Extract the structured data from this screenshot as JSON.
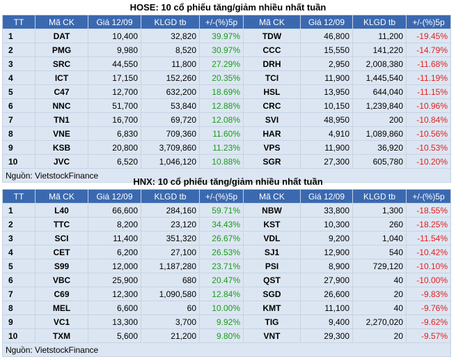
{
  "hose": {
    "title": "HOSE: 10 cổ phiếu tăng/giảm nhiều nhất tuần",
    "headers": [
      "TT",
      "Mã CK",
      "Giá 12/09",
      "KLGD tb",
      "+/-(%)5p",
      "Mã CK",
      "Giá 12/09",
      "KLGD tb",
      "+/-(%)5p"
    ],
    "rows": [
      {
        "tt": "1",
        "up_code": "DAT",
        "up_price": "10,400",
        "up_vol": "32,820",
        "up_pct": "39.97%",
        "dn_code": "TDW",
        "dn_price": "46,800",
        "dn_vol": "11,200",
        "dn_pct": "-19.45%"
      },
      {
        "tt": "2",
        "up_code": "PMG",
        "up_price": "9,980",
        "up_vol": "8,520",
        "up_pct": "30.97%",
        "dn_code": "CCC",
        "dn_price": "15,550",
        "dn_vol": "141,220",
        "dn_pct": "-14.79%"
      },
      {
        "tt": "3",
        "up_code": "SRC",
        "up_price": "44,550",
        "up_vol": "11,800",
        "up_pct": "27.29%",
        "dn_code": "DRH",
        "dn_price": "2,950",
        "dn_vol": "2,008,380",
        "dn_pct": "-11.68%"
      },
      {
        "tt": "4",
        "up_code": "ICT",
        "up_price": "17,150",
        "up_vol": "152,260",
        "up_pct": "20.35%",
        "dn_code": "TCI",
        "dn_price": "11,900",
        "dn_vol": "1,445,540",
        "dn_pct": "-11.19%"
      },
      {
        "tt": "5",
        "up_code": "C47",
        "up_price": "12,700",
        "up_vol": "632,200",
        "up_pct": "18.69%",
        "dn_code": "HSL",
        "dn_price": "13,950",
        "dn_vol": "644,040",
        "dn_pct": "-11.15%"
      },
      {
        "tt": "6",
        "up_code": "NNC",
        "up_price": "51,700",
        "up_vol": "53,840",
        "up_pct": "12.88%",
        "dn_code": "CRC",
        "dn_price": "10,150",
        "dn_vol": "1,239,840",
        "dn_pct": "-10.96%"
      },
      {
        "tt": "7",
        "up_code": "TN1",
        "up_price": "16,700",
        "up_vol": "69,720",
        "up_pct": "12.08%",
        "dn_code": "SVI",
        "dn_price": "48,950",
        "dn_vol": "200",
        "dn_pct": "-10.84%"
      },
      {
        "tt": "8",
        "up_code": "VNE",
        "up_price": "6,830",
        "up_vol": "709,360",
        "up_pct": "11.60%",
        "dn_code": "HAR",
        "dn_price": "4,910",
        "dn_vol": "1,089,860",
        "dn_pct": "-10.56%"
      },
      {
        "tt": "9",
        "up_code": "KSB",
        "up_price": "20,800",
        "up_vol": "3,709,860",
        "up_pct": "11.23%",
        "dn_code": "VPS",
        "dn_price": "11,900",
        "dn_vol": "36,920",
        "dn_pct": "-10.53%"
      },
      {
        "tt": "10",
        "up_code": "JVC",
        "up_price": "6,520",
        "up_vol": "1,046,120",
        "up_pct": "10.88%",
        "dn_code": "SGR",
        "dn_price": "27,300",
        "dn_vol": "605,780",
        "dn_pct": "-10.20%"
      }
    ],
    "source": "Nguồn: VietstockFinance"
  },
  "hnx": {
    "title": "HNX: 10 cổ phiếu tăng/giảm nhiều nhất tuần",
    "headers": [
      "TT",
      "Mã CK",
      "Giá 12/09",
      "KLGD tb",
      "+/-(%)5p",
      "Mã CK",
      "Giá 12/09",
      "KLGD tb",
      "+/-(%)5p"
    ],
    "rows": [
      {
        "tt": "1",
        "up_code": "L40",
        "up_price": "66,600",
        "up_vol": "284,160",
        "up_pct": "59.71%",
        "dn_code": "NBW",
        "dn_price": "33,800",
        "dn_vol": "1,300",
        "dn_pct": "-18.55%"
      },
      {
        "tt": "2",
        "up_code": "TTC",
        "up_price": "8,200",
        "up_vol": "23,120",
        "up_pct": "34.43%",
        "dn_code": "KST",
        "dn_price": "10,300",
        "dn_vol": "260",
        "dn_pct": "-18.25%"
      },
      {
        "tt": "3",
        "up_code": "SCI",
        "up_price": "11,400",
        "up_vol": "351,320",
        "up_pct": "26.67%",
        "dn_code": "VDL",
        "dn_price": "9,200",
        "dn_vol": "1,040",
        "dn_pct": "-11.54%"
      },
      {
        "tt": "4",
        "up_code": "CET",
        "up_price": "6,200",
        "up_vol": "27,100",
        "up_pct": "26.53%",
        "dn_code": "SJ1",
        "dn_price": "12,900",
        "dn_vol": "540",
        "dn_pct": "-10.42%"
      },
      {
        "tt": "5",
        "up_code": "S99",
        "up_price": "12,000",
        "up_vol": "1,187,280",
        "up_pct": "23.71%",
        "dn_code": "PSI",
        "dn_price": "8,900",
        "dn_vol": "729,120",
        "dn_pct": "-10.10%"
      },
      {
        "tt": "6",
        "up_code": "VBC",
        "up_price": "25,900",
        "up_vol": "680",
        "up_pct": "20.47%",
        "dn_code": "QST",
        "dn_price": "27,900",
        "dn_vol": "40",
        "dn_pct": "-10.00%"
      },
      {
        "tt": "7",
        "up_code": "C69",
        "up_price": "12,300",
        "up_vol": "1,090,580",
        "up_pct": "12.84%",
        "dn_code": "SGD",
        "dn_price": "26,600",
        "dn_vol": "20",
        "dn_pct": "-9.83%"
      },
      {
        "tt": "8",
        "up_code": "MEL",
        "up_price": "6,600",
        "up_vol": "60",
        "up_pct": "10.00%",
        "dn_code": "KMT",
        "dn_price": "11,100",
        "dn_vol": "40",
        "dn_pct": "-9.76%"
      },
      {
        "tt": "9",
        "up_code": "VC1",
        "up_price": "13,300",
        "up_vol": "3,700",
        "up_pct": "9.92%",
        "dn_code": "TIG",
        "dn_price": "9,400",
        "dn_vol": "2,270,020",
        "dn_pct": "-9.62%"
      },
      {
        "tt": "10",
        "up_code": "TXM",
        "up_price": "5,600",
        "up_vol": "21,200",
        "up_pct": "9.80%",
        "dn_code": "VNT",
        "dn_price": "29,300",
        "dn_vol": "20",
        "dn_pct": "-9.57%"
      }
    ],
    "source": "Nguồn: VietstockFinance"
  },
  "colors": {
    "header_bg": "#3b69b0",
    "cell_bg": "#dce6f2",
    "up": "#1c9a1c",
    "down": "#e22020"
  }
}
